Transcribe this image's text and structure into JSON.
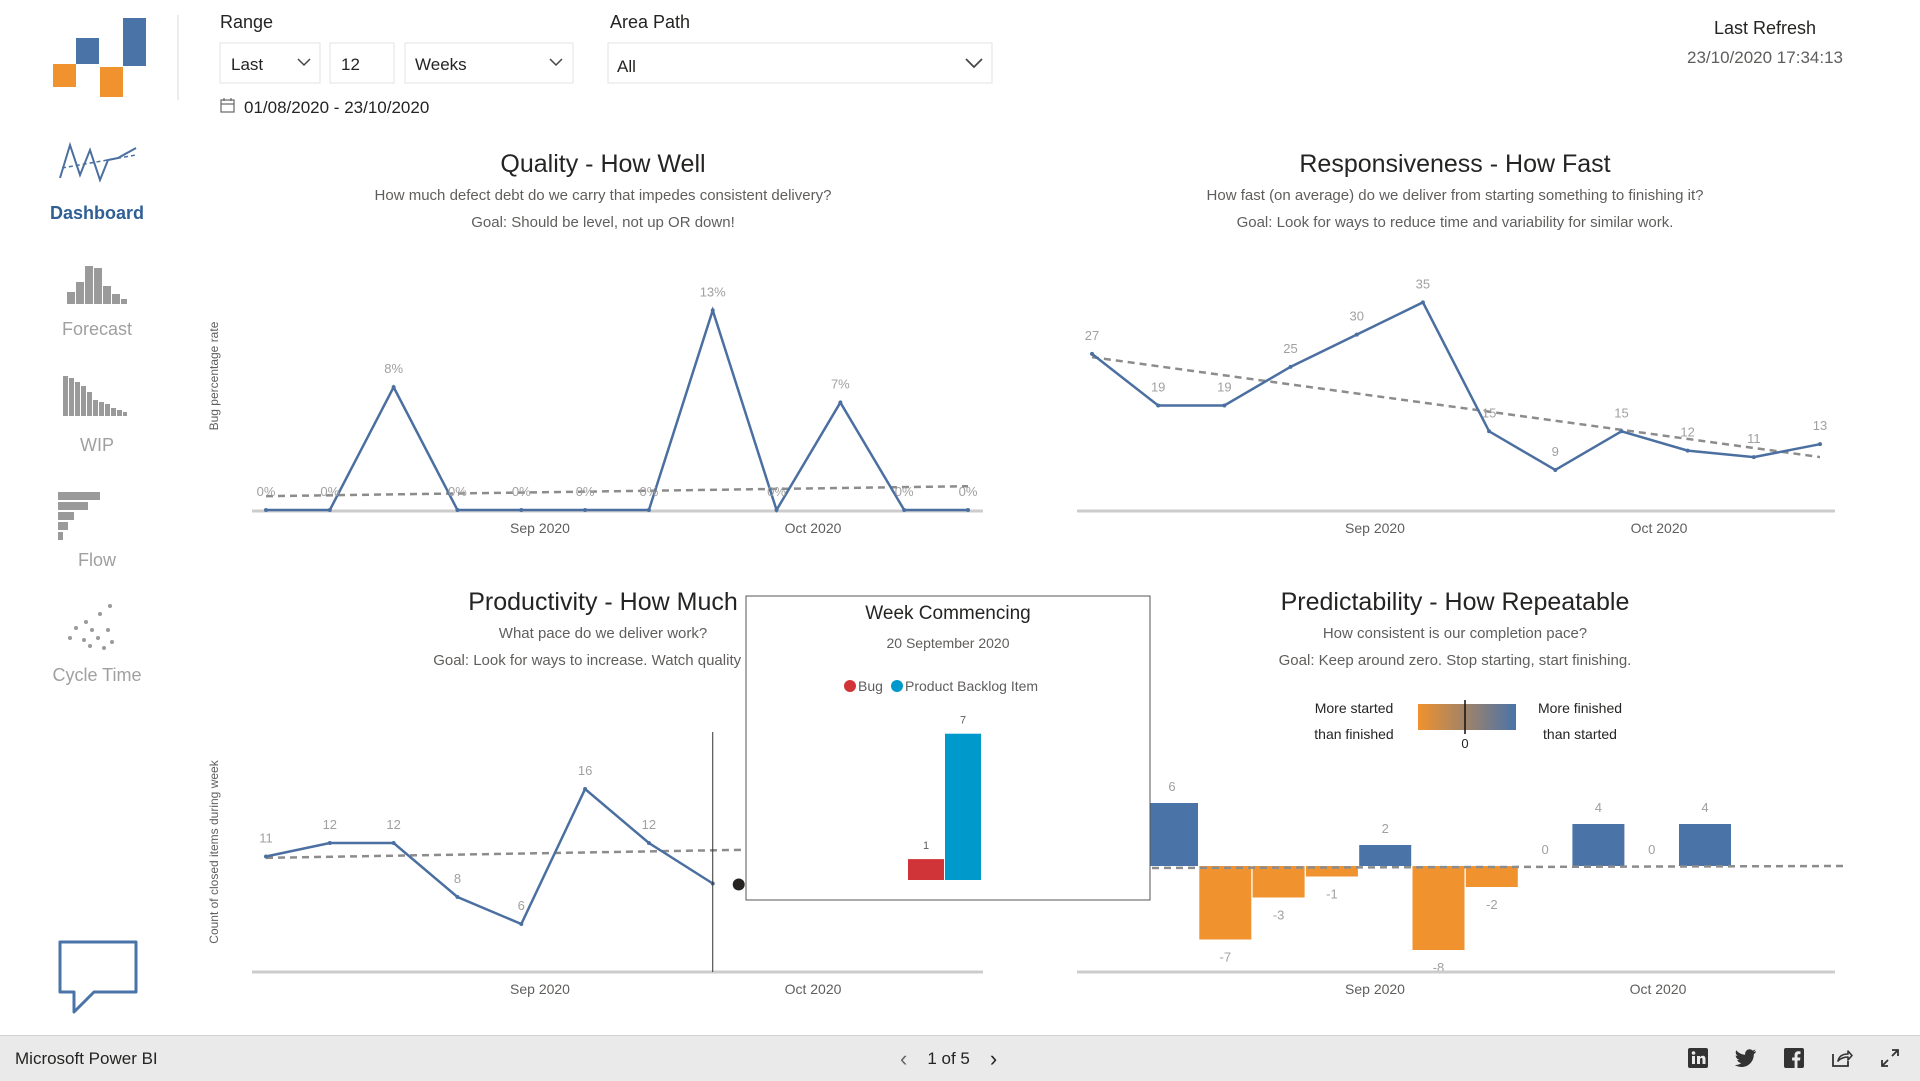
{
  "nav": {
    "items": [
      {
        "label": "Dashboard",
        "icon": "line-chart-icon",
        "active": true
      },
      {
        "label": "Forecast",
        "icon": "histogram-icon"
      },
      {
        "label": "WIP",
        "icon": "wip-bars-icon"
      },
      {
        "label": "Flow",
        "icon": "flow-bars-icon"
      },
      {
        "label": "Cycle Time",
        "icon": "scatter-icon"
      }
    ],
    "feedback_icon": "speech-bubble-icon"
  },
  "filters": {
    "range_label": "Range",
    "range_mode": "Last",
    "range_count": "12",
    "range_unit": "Weeks",
    "area_path_label": "Area Path",
    "area_path_value": "All",
    "date_range": "01/08/2020 - 23/10/2020"
  },
  "refresh": {
    "label": "Last Refresh",
    "value": "23/10/2020 17:34:13"
  },
  "panels": {
    "quality": {
      "title": "Quality - How Well",
      "subtitle1": "How much defect debt do we carry that impedes consistent delivery?",
      "subtitle2": "Goal: Should be level, not up OR down!"
    },
    "responsiveness": {
      "title": "Responsiveness - How Fast",
      "subtitle1": "How fast (on average) do we deliver from starting something to finishing it?",
      "subtitle2": "Goal: Look for ways to reduce time and variability for similar work."
    },
    "productivity": {
      "title": "Productivity - How Much",
      "subtitle1": "What pace do we deliver work?",
      "subtitle2": "Goal: Look for ways to increase. Watch quality if yo"
    },
    "predictability": {
      "title": "Predictability - How Repeatable",
      "subtitle1": "How consistent is our completion pace?",
      "subtitle2": "Goal: Keep around zero. Stop starting, start finishing."
    }
  },
  "legend_gradient": {
    "left_line1": "More started",
    "left_line2": "than finished",
    "right_line1": "More finished",
    "right_line2": "than started",
    "zero": "0"
  },
  "tooltip": {
    "title": "Week Commencing",
    "date": "20 September 2020",
    "legend": [
      {
        "name": "Bug",
        "color": "#d13438"
      },
      {
        "name": "Product Backlog Item",
        "color": "#0099cc"
      }
    ]
  },
  "colors": {
    "line": "#4a6fa0",
    "trend": "#8c8c8c",
    "positive": "#4a73a8",
    "negative": "#f0922e",
    "axis": "#cccccc",
    "label": "#a0a0a0"
  },
  "chart_data": [
    {
      "id": "quality",
      "type": "line",
      "ylabel": "Bug percentage rate",
      "x_ticks": [
        "Sep 2020",
        "Oct 2020"
      ],
      "values": [
        0,
        0,
        8,
        0,
        0,
        0,
        0,
        13,
        0,
        7,
        0,
        0
      ],
      "labels": [
        "0%",
        "0%",
        "8%",
        "0%",
        "0%",
        "0%",
        "0%",
        "13%",
        "0%",
        "7%",
        "0%",
        "0%"
      ],
      "trend": [
        0.9,
        1.55
      ],
      "ylim": [
        0,
        14
      ]
    },
    {
      "id": "responsiveness",
      "type": "line",
      "ylabel": "",
      "x_ticks": [
        "Sep 2020",
        "Oct 2020"
      ],
      "values": [
        27,
        19,
        19,
        25,
        30,
        35,
        15,
        9,
        15,
        12,
        11,
        13
      ],
      "labels": [
        "27",
        "19",
        "19",
        "25",
        "30",
        "35",
        "15",
        "9",
        "15",
        "12",
        "11",
        "13"
      ],
      "trend": [
        26.5,
        11
      ],
      "ylim": [
        0,
        38
      ]
    },
    {
      "id": "productivity",
      "type": "line",
      "ylabel": "Count of closed items during week",
      "x_ticks": [
        "Sep 2020",
        "Oct 2020"
      ],
      "values": [
        11,
        12,
        12,
        8,
        6,
        16,
        12,
        9
      ],
      "labels": [
        "11",
        "12",
        "12",
        "8",
        "6",
        "16",
        "12",
        ""
      ],
      "trend": [
        10.9,
        11.5
      ],
      "ylim": [
        0,
        20
      ]
    },
    {
      "id": "predictability",
      "type": "bar",
      "ylabel": "",
      "x_ticks": [
        "Sep 2020",
        "Oct 2020"
      ],
      "values": [
        6,
        -7,
        -3,
        -1,
        2,
        -8,
        -2,
        0,
        4,
        0,
        4
      ],
      "labels": [
        "6",
        "-7",
        "-3",
        "-1",
        "2",
        "-8",
        "-2",
        "0",
        "4",
        "0",
        "4"
      ],
      "ylim": [
        -10,
        8
      ]
    },
    {
      "id": "tooltip",
      "type": "bar",
      "categories": [
        "Bug",
        "Product Backlog Item"
      ],
      "values": [
        1,
        7
      ],
      "labels": [
        "1",
        "7"
      ],
      "ylim": [
        0,
        7
      ]
    }
  ]
}
